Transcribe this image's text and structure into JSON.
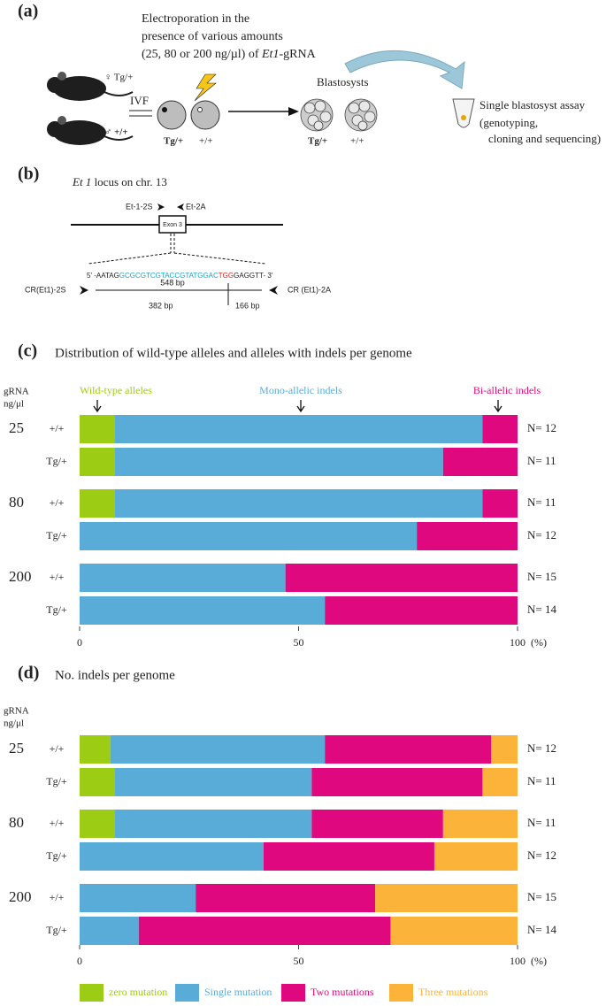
{
  "panel_a": {
    "letter": "(a)",
    "electroporation": [
      "Electroporation in the",
      "presence of various amounts"
    ],
    "amounts": "(25, 80 or 200 ng/µl) of ",
    "gene": "Et1",
    "gene_suffix": "-gRNA",
    "female": "♀ Tg/+",
    "male": "♂ +/+",
    "ivf": "IVF",
    "cell_labels": [
      "Tg/+",
      "+/+"
    ],
    "blastocysts": "Blastosysts",
    "blastocyst_labels": [
      "Tg/+",
      "+/+"
    ],
    "assay": [
      "Single blastosyst assay",
      "(genotyping,",
      "cloning and sequencing)"
    ]
  },
  "panel_b": {
    "letter": "(b)",
    "locus_gene": "Et 1",
    "locus_text": " locus on chr. 13",
    "primer_left": "Et-1-2S",
    "primer_right": "Et-2A",
    "exon": "Exon 3",
    "seq_start": "5' -AATAG",
    "seq_guide": "GCGCGTCGTACCGTATGGAC",
    "seq_pam": "TGG",
    "seq_end": "GAGGTT- 3'",
    "cr_left": "CR(Et1)-2S",
    "cr_right": "CR (Et1)-2A",
    "amplicon": "548 bp",
    "fragment_left": "382 bp",
    "fragment_right": "166 bp"
  },
  "chart_data": [
    {
      "type": "stacked-barh",
      "panel": "(c)",
      "title": "Distribution of wild-type alleles and alleles with indels per genome",
      "group_label": [
        "gRNA",
        "ng/μl"
      ],
      "groups": [
        "25",
        "80",
        "200"
      ],
      "categories": [
        "+/+",
        "Tg/+",
        "+/+",
        "Tg/+",
        "+/+",
        "Tg/+"
      ],
      "n_labels": [
        "N= 12",
        "N= 11",
        "N= 11",
        "N= 12",
        "N= 15",
        "N= 14"
      ],
      "series": [
        {
          "name": "Wild-type alleles",
          "color": "#9ccc14",
          "values": [
            8,
            8,
            8,
            0,
            0,
            0
          ]
        },
        {
          "name": "Mono-allelic indels",
          "color": "#5aacd8",
          "values": [
            84,
            75,
            84,
            77,
            47,
            56
          ]
        },
        {
          "name": "Bi-allelic indels",
          "color": "#e0087e",
          "values": [
            8,
            17,
            8,
            23,
            53,
            44
          ]
        }
      ],
      "xlim": [
        0,
        100
      ],
      "xticks": [
        0,
        50,
        100
      ],
      "xlabel": "(%)",
      "legend": "top"
    },
    {
      "type": "stacked-barh",
      "panel": "(d)",
      "title": "No. indels per genome",
      "group_label": [
        "gRNA",
        "ng/μl"
      ],
      "groups": [
        "25",
        "80",
        "200"
      ],
      "categories": [
        "+/+",
        "Tg/+",
        "+/+",
        "Tg/+",
        "+/+",
        "Tg/+"
      ],
      "n_labels": [
        "N= 12",
        "N= 11",
        "N= 11",
        "N= 12",
        "N= 15",
        "N= 14"
      ],
      "series": [
        {
          "name": "zero mutation",
          "color": "#9ccc14",
          "values": [
            7,
            8,
            8,
            0,
            0,
            0
          ]
        },
        {
          "name": "Single mutation",
          "color": "#5aacd8",
          "values": [
            49,
            45,
            45,
            42,
            26.5,
            13.5
          ]
        },
        {
          "name": "Two mutations",
          "color": "#e0087e",
          "values": [
            38,
            39,
            30,
            39,
            41,
            57.5
          ]
        },
        {
          "name": "Three mutations",
          "color": "#fbb33a",
          "values": [
            6,
            8,
            17,
            19,
            32.5,
            29
          ]
        }
      ],
      "xlim": [
        0,
        100
      ],
      "xticks": [
        0,
        50,
        100
      ],
      "xlabel": "(%)",
      "legend": "bottom"
    }
  ]
}
